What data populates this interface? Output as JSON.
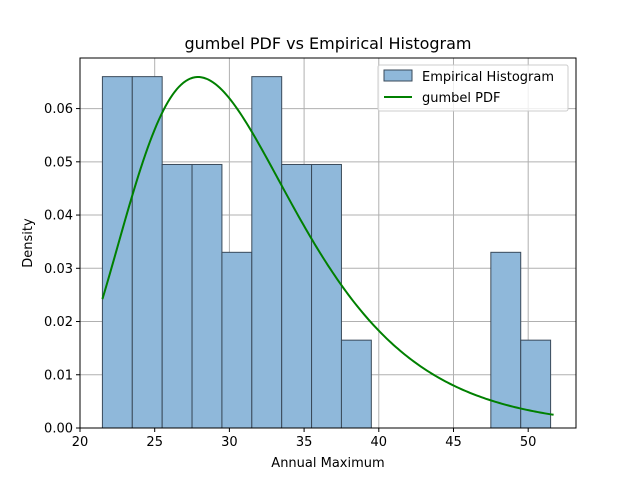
{
  "chart_data": {
    "type": "bar",
    "title": "gumbel PDF vs Empirical Histogram",
    "xlabel": "Annual Maximum",
    "ylabel": "Density",
    "xlim": [
      20,
      53.2
    ],
    "ylim": [
      0,
      0.0695
    ],
    "xticks": [
      20,
      25,
      30,
      35,
      40,
      45,
      50
    ],
    "yticks": [
      0.0,
      0.01,
      0.02,
      0.03,
      0.04,
      0.05,
      0.06
    ],
    "ytick_labels": [
      "0.00",
      "0.01",
      "0.02",
      "0.03",
      "0.04",
      "0.05",
      "0.06"
    ],
    "grid": true,
    "legend_position": "top-right",
    "colors": {
      "bar_fill": "#8fb8da",
      "bar_edge": "#3a4a5a",
      "pdf_line": "#008000",
      "grid": "#b0b0b0"
    },
    "histogram": {
      "name": "Empirical Histogram",
      "bin_width": 2.0,
      "bins": [
        {
          "x0": 21.5,
          "density": 0.066
        },
        {
          "x0": 23.5,
          "density": 0.066
        },
        {
          "x0": 25.5,
          "density": 0.0495
        },
        {
          "x0": 27.5,
          "density": 0.0495
        },
        {
          "x0": 29.5,
          "density": 0.033
        },
        {
          "x0": 31.5,
          "density": 0.066
        },
        {
          "x0": 33.5,
          "density": 0.0495
        },
        {
          "x0": 35.5,
          "density": 0.0495
        },
        {
          "x0": 37.5,
          "density": 0.0165
        },
        {
          "x0": 39.5,
          "density": 0
        },
        {
          "x0": 41.5,
          "density": 0
        },
        {
          "x0": 43.5,
          "density": 0
        },
        {
          "x0": 45.5,
          "density": 0
        },
        {
          "x0": 47.5,
          "density": 0.033
        },
        {
          "x0": 49.5,
          "density": 0.0165
        }
      ]
    },
    "pdf": {
      "name": "gumbel PDF",
      "distribution": "gumbel_r",
      "loc": 27.9,
      "scale": 5.58,
      "x_range": [
        21.5,
        51.7
      ]
    }
  }
}
